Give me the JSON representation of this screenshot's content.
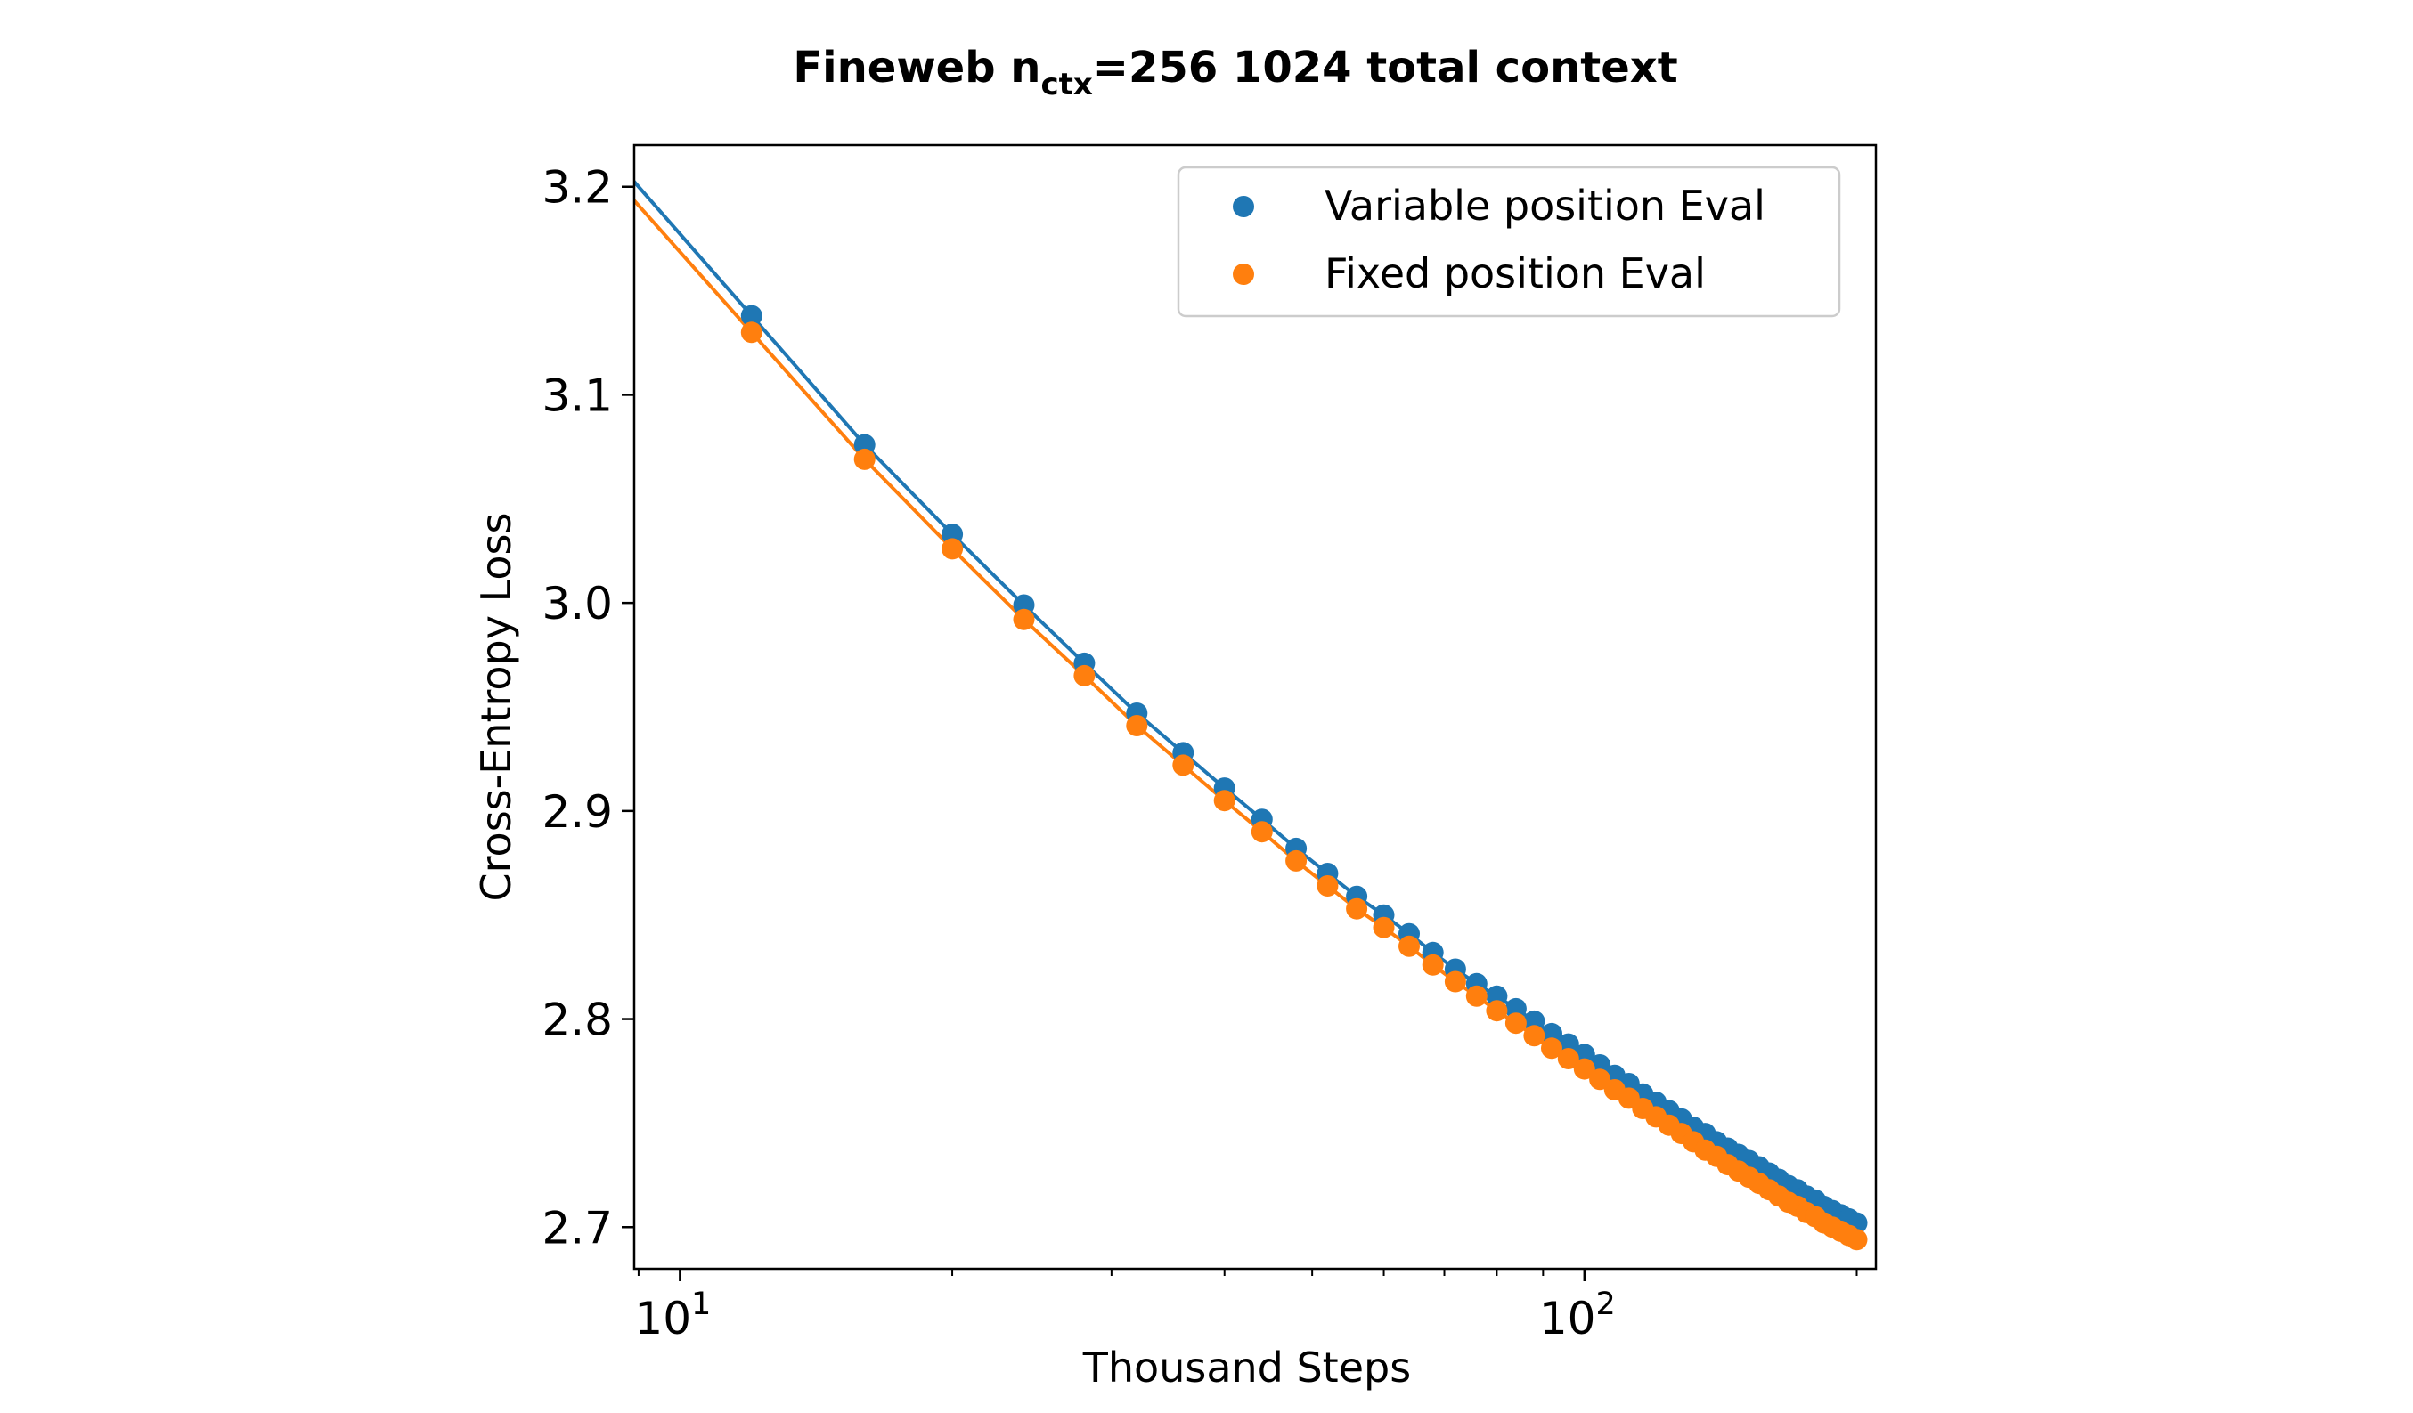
{
  "chart_data": {
    "type": "scatter",
    "title": {
      "main": "Fineweb n",
      "subscript": "ctx",
      "rest": "=256 1024 total context"
    },
    "xlabel": "Thousand Steps",
    "ylabel": "Cross-Entropy Loss",
    "xscale": "log",
    "xlim": [
      8.9,
      210
    ],
    "ylim": [
      2.68,
      3.22
    ],
    "x_ticks": [
      {
        "base": "10",
        "exp": "1"
      },
      {
        "base": "10",
        "exp": "2"
      }
    ],
    "y_ticks": [
      "2.7",
      "2.8",
      "2.9",
      "3.0",
      "3.1",
      "3.2"
    ],
    "grid": false,
    "legend_position": "top-right",
    "x": [
      12,
      16,
      20,
      24,
      28,
      32,
      36,
      40,
      44,
      48,
      52,
      56,
      60,
      64,
      68,
      72,
      76,
      80,
      84,
      88,
      92,
      96,
      100,
      104,
      108,
      112,
      116,
      120,
      124,
      128,
      132,
      136,
      140,
      144,
      148,
      152,
      156,
      160,
      164,
      168,
      172,
      176,
      180,
      184,
      188,
      192,
      196,
      200
    ],
    "series": [
      {
        "name": "Variable position Eval",
        "color": "#1f77b4",
        "values": [
          3.138,
          3.076,
          3.033,
          2.999,
          2.971,
          2.947,
          2.928,
          2.911,
          2.896,
          2.882,
          2.87,
          2.859,
          2.85,
          2.841,
          2.832,
          2.824,
          2.817,
          2.811,
          2.805,
          2.799,
          2.793,
          2.788,
          2.783,
          2.778,
          2.773,
          2.769,
          2.764,
          2.76,
          2.756,
          2.752,
          2.748,
          2.745,
          2.741,
          2.738,
          2.735,
          2.732,
          2.729,
          2.726,
          2.723,
          2.72,
          2.718,
          2.715,
          2.713,
          2.71,
          2.708,
          2.706,
          2.704,
          2.702
        ]
      },
      {
        "name": "Fixed position Eval",
        "color": "#ff7f0e",
        "values": [
          3.13,
          3.069,
          3.026,
          2.992,
          2.965,
          2.941,
          2.922,
          2.905,
          2.89,
          2.876,
          2.864,
          2.853,
          2.844,
          2.835,
          2.826,
          2.818,
          2.811,
          2.804,
          2.798,
          2.792,
          2.786,
          2.781,
          2.776,
          2.771,
          2.766,
          2.762,
          2.757,
          2.753,
          2.749,
          2.745,
          2.741,
          2.737,
          2.734,
          2.73,
          2.727,
          2.724,
          2.721,
          2.718,
          2.715,
          2.712,
          2.71,
          2.707,
          2.705,
          2.702,
          2.7,
          2.698,
          2.696,
          2.694
        ]
      }
    ]
  }
}
